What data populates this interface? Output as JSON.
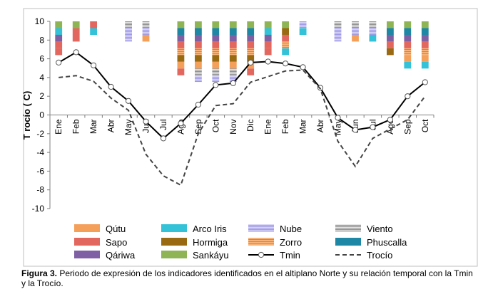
{
  "chart_data": {
    "type": "line",
    "ylabel": "T rocío ( C)",
    "ylim": [
      -10,
      10
    ],
    "yticks": [
      -10,
      -8,
      -6,
      -4,
      -2,
      0,
      2,
      4,
      6,
      8,
      10
    ],
    "categories": [
      "Ene",
      "Feb",
      "Mar",
      "Abr",
      "May",
      "Jun",
      "Jul",
      "Ago",
      "Sep",
      "Oct",
      "Nov",
      "Dic",
      "Ene",
      "Feb",
      "Mar",
      "Abr",
      "May",
      "Jun",
      "Jul",
      "Ago",
      "Sep",
      "Oct"
    ],
    "series": [
      {
        "name": "Tmin",
        "style": "solid-with-circles",
        "color": "#000000",
        "values": [
          5.6,
          6.7,
          5.3,
          3.0,
          1.5,
          -0.7,
          -2.5,
          -0.9,
          1.1,
          3.2,
          3.4,
          5.6,
          5.7,
          5.5,
          5.1,
          2.9,
          -0.3,
          -1.6,
          -1.3,
          -0.5,
          2.0,
          3.5
        ]
      },
      {
        "name": "Trocío",
        "style": "dashed",
        "color": "#444444",
        "values": [
          4.0,
          4.2,
          3.6,
          1.8,
          0.5,
          -4.2,
          -6.5,
          -7.5,
          -2.0,
          1.0,
          1.2,
          3.5,
          4.1,
          4.7,
          4.8,
          2.8,
          -2.8,
          -5.5,
          -2.5,
          -1.5,
          -0.5,
          2.0
        ]
      }
    ],
    "indicators": [
      {
        "name": "Qútu",
        "color": "#f5a05a",
        "pattern": "solid",
        "segments": [
          [
            0,
            0
          ],
          [
            0,
            0
          ],
          [
            0,
            0
          ],
          [
            0,
            0
          ],
          [
            0,
            0
          ],
          [
            0.0,
            0.0
          ],
          [
            0,
            0
          ],
          [
            3.0,
            3.3
          ],
          [
            4.1,
            4.4
          ],
          [
            3.6,
            3.9
          ],
          [
            3.5,
            3.8
          ],
          [
            3.0,
            3.4
          ],
          [
            0,
            0
          ],
          [
            0,
            0
          ],
          [
            0,
            0
          ],
          [
            0,
            0
          ],
          [
            0,
            0
          ],
          [
            1.8,
            2.4
          ],
          [
            0,
            0
          ],
          [
            0,
            0
          ],
          [
            3.0,
            3.3
          ],
          [
            3.1,
            3.4
          ]
        ],
        "_note": "[from,to] rows below top"
      },
      {
        "name": "Sapo",
        "color": "#e2685f",
        "pattern": "solid"
      },
      {
        "name": "Qáriwa",
        "color": "#8060a5",
        "pattern": "solid"
      },
      {
        "name": "Arco Iris",
        "color": "#33c2d8",
        "pattern": "solid"
      },
      {
        "name": "Hormiga",
        "color": "#9a6a12",
        "pattern": "solid"
      },
      {
        "name": "Sankáyu",
        "color": "#8fb456",
        "pattern": "solid"
      },
      {
        "name": "Nube",
        "color": "#b6b2ef",
        "pattern": "stripes-light"
      },
      {
        "name": "Zorro",
        "color": "#ef9545",
        "pattern": "stripes"
      },
      {
        "name": "Viento",
        "color": "#a9a9a9",
        "pattern": "stripes-fine"
      },
      {
        "name": "Phuscalla",
        "color": "#1d87a5",
        "pattern": "solid"
      }
    ],
    "legend": {
      "position": "bottom",
      "rows": [
        [
          {
            "label": "Qútu",
            "kind": "patch",
            "color": "#f5a05a"
          },
          {
            "label": "Arco Iris",
            "kind": "patch",
            "color": "#33c2d8"
          },
          {
            "label": "Nube",
            "kind": "patch-stripe",
            "color": "#b6b2ef"
          },
          {
            "label": "Viento",
            "kind": "patch-stripe",
            "color": "#a9a9a9"
          }
        ],
        [
          {
            "label": "Sapo",
            "kind": "patch",
            "color": "#e2685f"
          },
          {
            "label": "Hormiga",
            "kind": "patch",
            "color": "#9a6a12"
          },
          {
            "label": "Zorro",
            "kind": "patch-stripe",
            "color": "#ef9545"
          },
          {
            "label": "Phuscalla",
            "kind": "patch",
            "color": "#1d87a5"
          }
        ],
        [
          {
            "label": "Qáriwa",
            "kind": "patch",
            "color": "#8060a5"
          },
          {
            "label": "Sankáyu",
            "kind": "patch",
            "color": "#8fb456"
          },
          {
            "label": "Tmin",
            "kind": "line-marker",
            "color": "#000000"
          },
          {
            "label": "Trocío",
            "kind": "line-dashed",
            "color": "#444444"
          }
        ]
      ]
    }
  },
  "stack_columns": [
    [
      "Sankáyu",
      "Arco Iris",
      "Qáriwa",
      "Sapo",
      "Sapo"
    ],
    [
      "Sankáyu",
      "Sapo",
      "Sapo"
    ],
    [
      "Sapo",
      "Arco Iris"
    ],
    [],
    [
      "Viento",
      "Nube",
      "Nube"
    ],
    [
      "Viento",
      "Nube",
      "Qútu"
    ],
    [],
    [
      "Sankáyu",
      "Phuscalla",
      "Qáriwa",
      "Sapo",
      "Zorro",
      "Hormiga",
      "Qútu",
      "Sapo"
    ],
    [
      "Sankáyu",
      "Phuscalla",
      "Qáriwa",
      "Sapo",
      "Zorro",
      "Hormiga",
      "Qútu",
      "Viento",
      "Nube"
    ],
    [
      "Sankáyu",
      "Phuscalla",
      "Qáriwa",
      "Sapo",
      "Zorro",
      "Hormiga",
      "Qútu",
      "Viento",
      "Nube"
    ],
    [
      "Sankáyu",
      "Phuscalla",
      "Qáriwa",
      "Sapo",
      "Zorro",
      "Hormiga",
      "Qútu",
      "Viento",
      "Nube"
    ],
    [
      "Sankáyu",
      "Phuscalla",
      "Qáriwa",
      "Sapo",
      "Zorro",
      "Hormiga",
      "Qútu",
      "Sapo"
    ],
    [
      "Sankáyu",
      "Arco Iris",
      "Qáriwa",
      "Sapo",
      "Sapo"
    ],
    [
      "Sankáyu",
      "Hormiga",
      "Sapo",
      "Zorro",
      "Arco Iris"
    ],
    [
      "Nube",
      "Arco Iris"
    ],
    [],
    [
      "Viento",
      "Nube",
      "Nube"
    ],
    [
      "Viento",
      "Nube",
      "Qútu"
    ],
    [
      "Viento",
      "Nube",
      "Arco Iris"
    ],
    [
      "Sankáyu",
      "Phuscalla",
      "Qáriwa",
      "Sapo",
      "Hormiga"
    ],
    [
      "Sankáyu",
      "Phuscalla",
      "Qáriwa",
      "Sapo",
      "Zorro",
      "Qútu",
      "Arco Iris"
    ],
    [
      "Sankáyu",
      "Phuscalla",
      "Qáriwa",
      "Sapo",
      "Zorro",
      "Qútu",
      "Arco Iris"
    ]
  ],
  "caption": {
    "label": "Figura 3.",
    "text": " Periodo de expresión de los indicadores identificados en el altiplano Norte y su relación temporal con la Tmin y la Trocío."
  }
}
